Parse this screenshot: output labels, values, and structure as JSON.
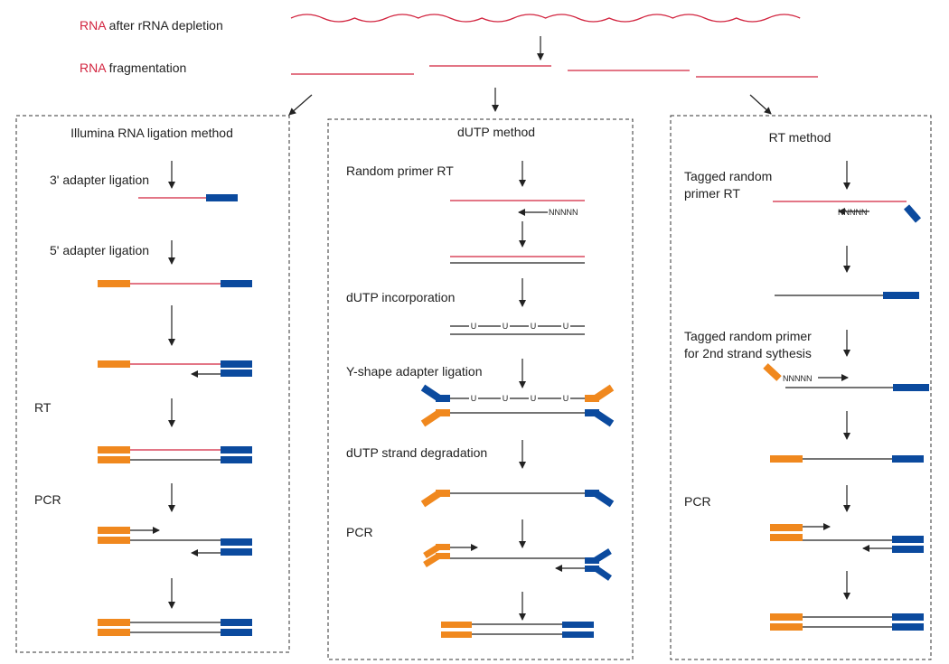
{
  "header": {
    "rna_word": "RNA",
    "step1_rest": " after rRNA depletion",
    "step2_rest": " fragmentation"
  },
  "panels": [
    {
      "title": "Illumina RNA ligation method",
      "steps": [
        "3' adapter ligation",
        "5' adapter ligation",
        "RT",
        "PCR"
      ]
    },
    {
      "title": "dUTP method",
      "steps": [
        "Random primer RT",
        "dUTP incorporation",
        "Y-shape adapter ligation",
        "dUTP strand degradation",
        "PCR"
      ],
      "primer_label": "NNNNN",
      "uracil_label": "U"
    },
    {
      "title": "RT method",
      "steps": [
        "Tagged random",
        "primer RT",
        "Tagged random primer",
        "for 2nd strand sythesis",
        "PCR"
      ],
      "primer_label": "NNNNN"
    }
  ],
  "colors": {
    "rna": "#d2243f",
    "adapter_5p": "#f0881e",
    "adapter_3p": "#0b4a9e",
    "dna": "#222222"
  }
}
